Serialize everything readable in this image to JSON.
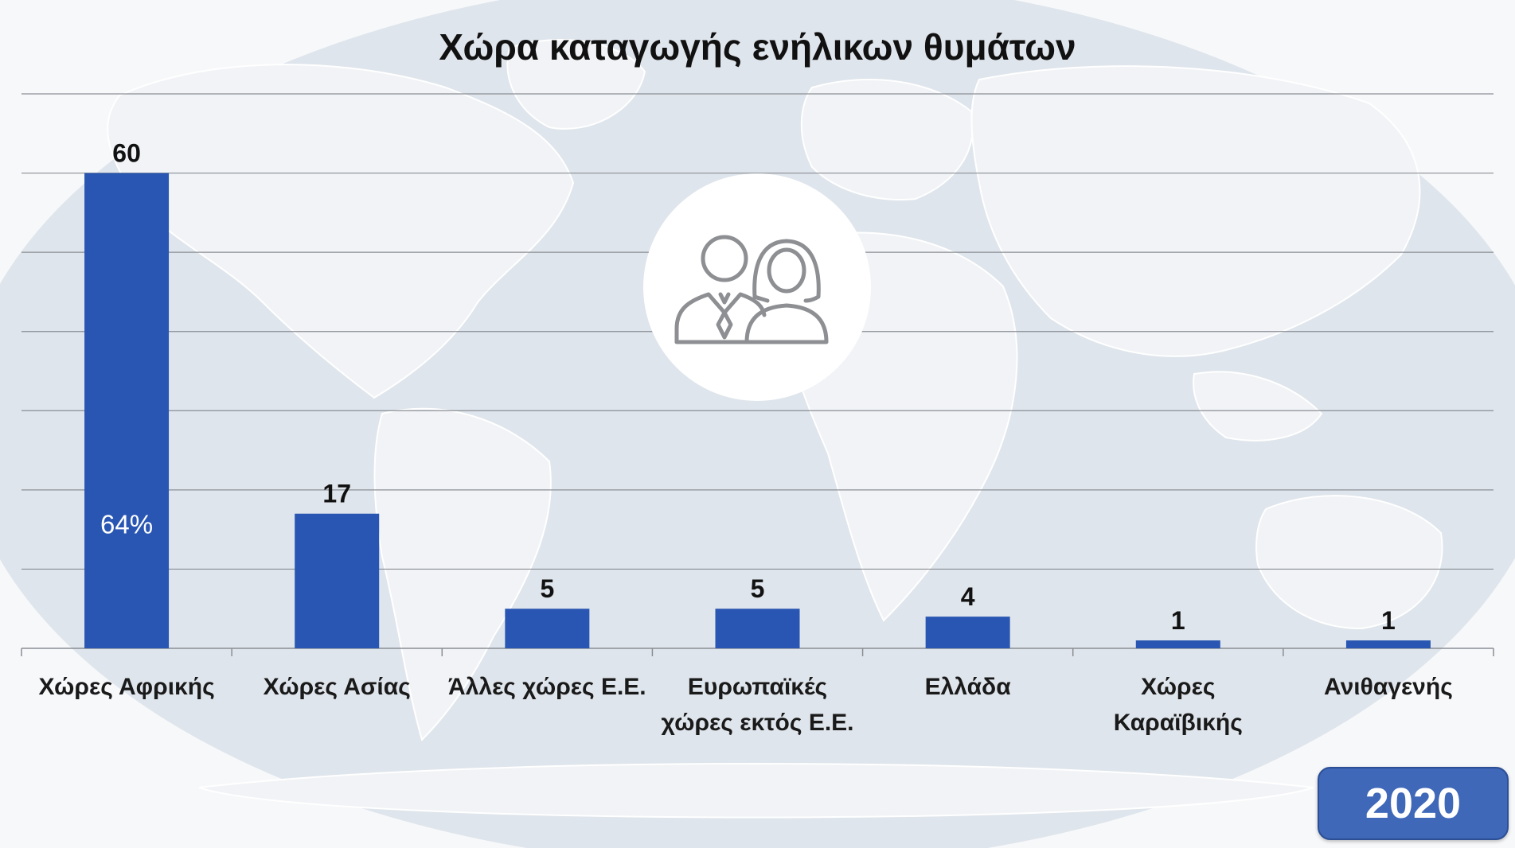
{
  "colors": {
    "bar": "#2956b2",
    "grid": "#8a8e94",
    "map_ocean": "#dfe5ec",
    "map_land": "#f1f3f6",
    "badge": "#3f68b8"
  },
  "icons": {
    "background": "world-map",
    "center": "man-and-woman-icon"
  },
  "year_badge": "2020",
  "chart_data": {
    "type": "bar",
    "title": "Χώρα καταγωγής ενήλικων θυμάτων",
    "categories": [
      [
        "Χώρες Αφρικής"
      ],
      [
        "Χώρες Ασίας"
      ],
      [
        "Άλλες χώρες Ε.Ε."
      ],
      [
        "Ευρωπαϊκές",
        "χώρες εκτός Ε.Ε."
      ],
      [
        "Ελλάδα"
      ],
      [
        "Χώρες",
        "Καραϊβικής"
      ],
      [
        "Ανιθαγενής"
      ]
    ],
    "values": [
      60,
      17,
      5,
      5,
      4,
      1,
      1
    ],
    "inner_labels": [
      "64%",
      "",
      "",
      "",
      "",
      "",
      ""
    ],
    "ylim": [
      0,
      70
    ],
    "grid": true,
    "legend": "none"
  }
}
